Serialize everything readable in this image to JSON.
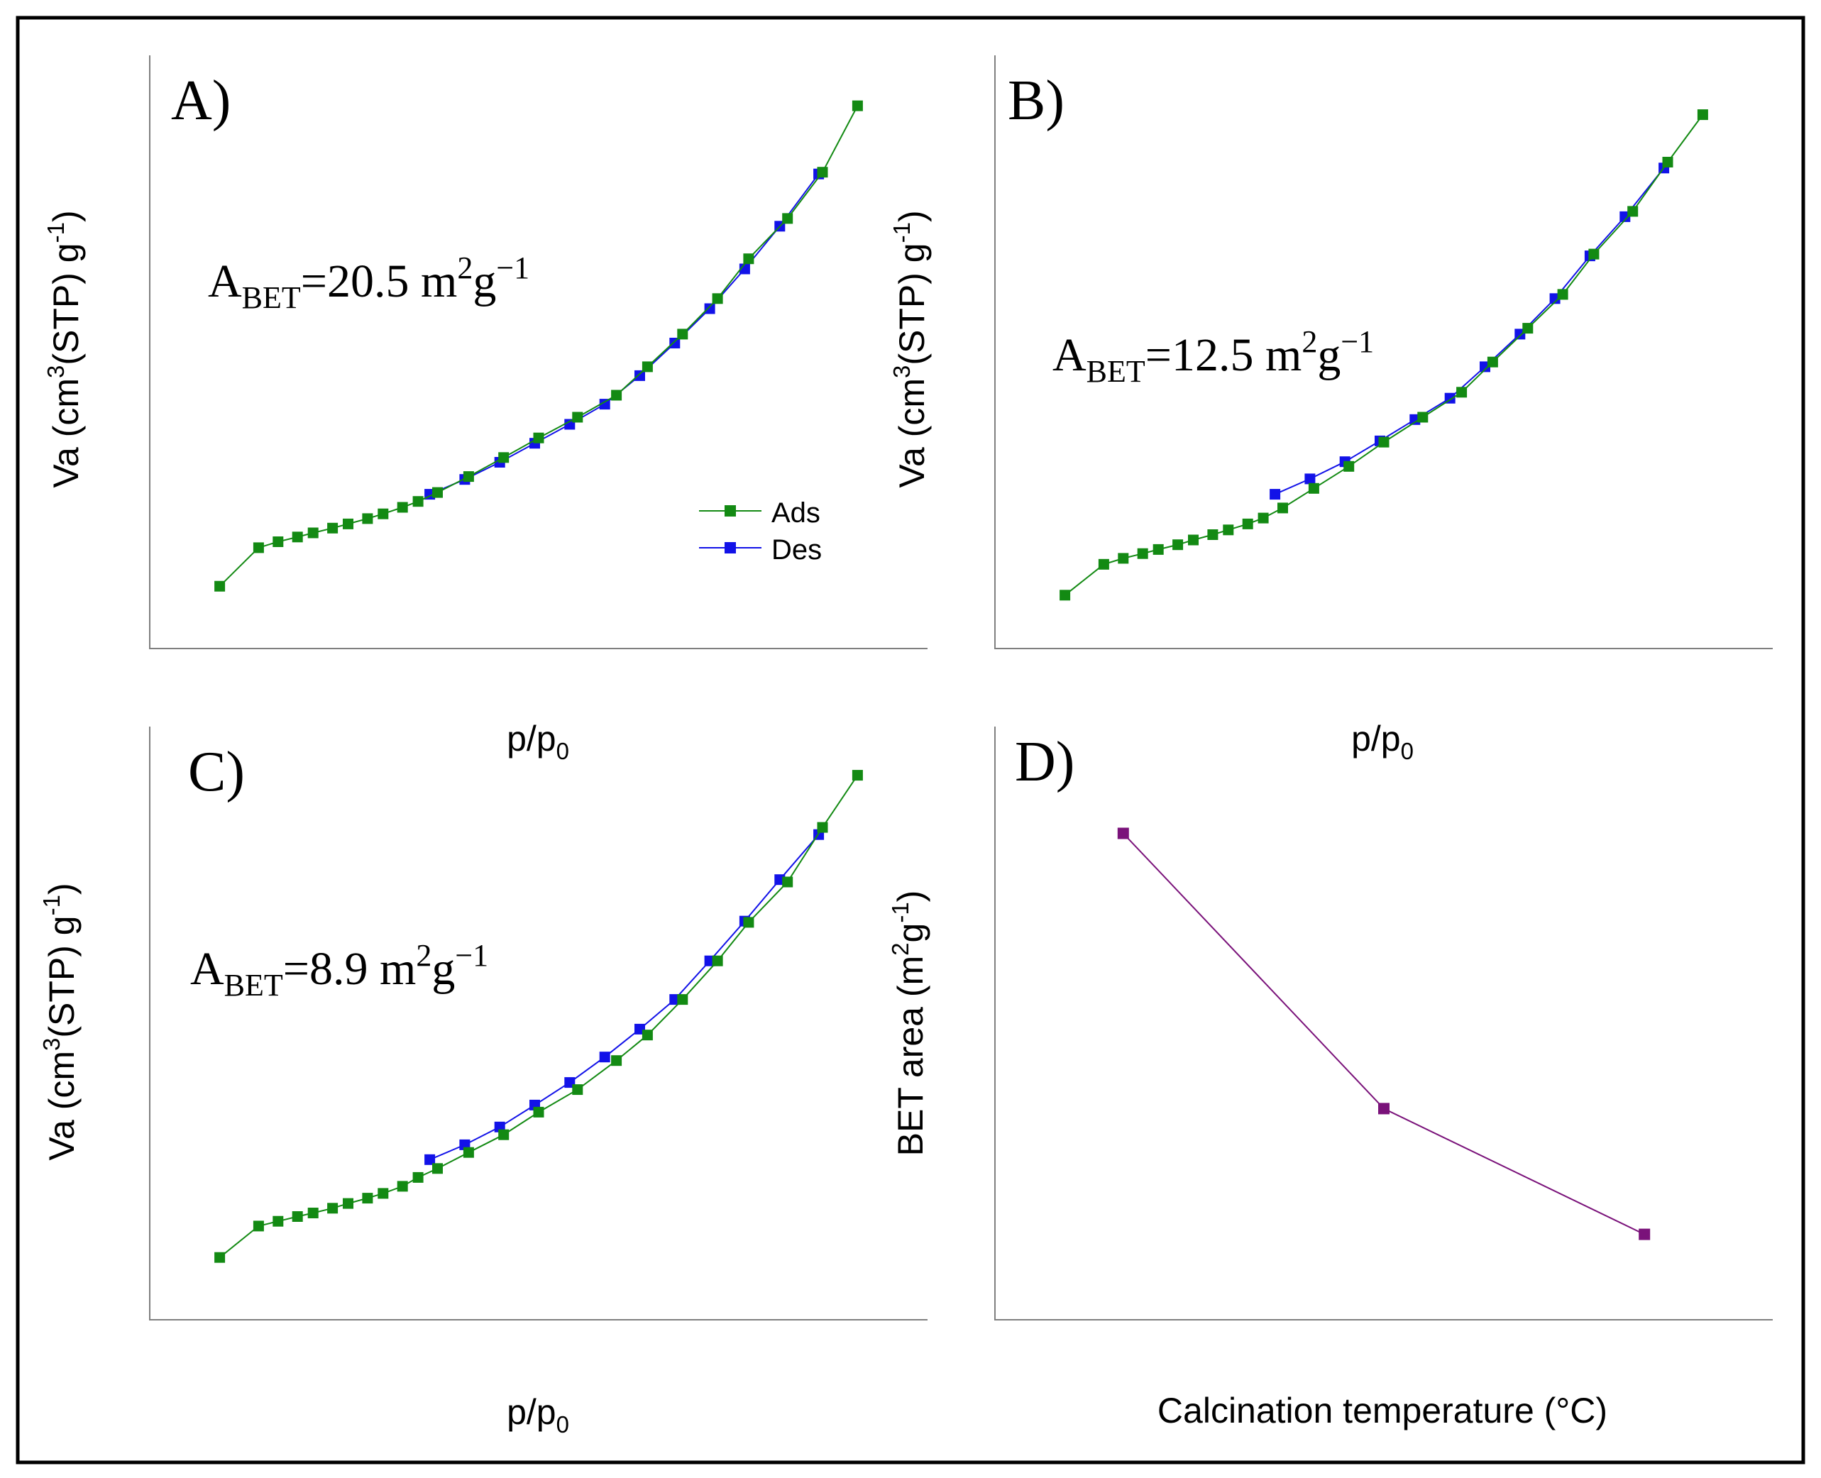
{
  "colors": {
    "ads": "#138a13",
    "des": "#1212e8",
    "bet": "#7a127a",
    "axis": "#7f7f7f",
    "border": "#000000"
  },
  "legend": {
    "ads_label": "Ads",
    "des_label": "Des"
  },
  "chart_data": [
    {
      "panel": "A)",
      "type": "line",
      "xlabel_base": "p/p",
      "xlabel_sub": "0",
      "ylabel_base": "Va (cm",
      "ylabel_sup1": "3",
      "ylabel_mid": "(STP) g",
      "ylabel_sup2": "-1",
      "ylabel_end": ")",
      "annotation": {
        "pre": "A",
        "sub": "BET",
        "value": "=20.5 m",
        "sup1": "2",
        "unit": "g",
        "sup2": "−1"
      },
      "xlim": [
        0,
        1
      ],
      "ylim": [
        0,
        1
      ],
      "legend_position": "center-right",
      "series": [
        {
          "name": "Ads",
          "x": [
            0.09,
            0.14,
            0.165,
            0.19,
            0.21,
            0.235,
            0.255,
            0.28,
            0.3,
            0.325,
            0.345,
            0.37,
            0.41,
            0.455,
            0.5,
            0.55,
            0.6,
            0.64,
            0.685,
            0.73,
            0.77,
            0.82,
            0.865,
            0.91
          ],
          "y": [
            0.105,
            0.17,
            0.18,
            0.188,
            0.195,
            0.203,
            0.21,
            0.219,
            0.227,
            0.238,
            0.248,
            0.263,
            0.29,
            0.322,
            0.355,
            0.39,
            0.427,
            0.475,
            0.53,
            0.59,
            0.657,
            0.725,
            0.803,
            0.915
          ]
        },
        {
          "name": "Des",
          "x": [
            0.36,
            0.405,
            0.45,
            0.495,
            0.54,
            0.585,
            0.63,
            0.675,
            0.72,
            0.765,
            0.81,
            0.86
          ],
          "y": [
            0.26,
            0.285,
            0.314,
            0.346,
            0.378,
            0.412,
            0.46,
            0.515,
            0.573,
            0.64,
            0.712,
            0.8
          ]
        }
      ]
    },
    {
      "panel": "B)",
      "type": "line",
      "xlabel_base": "p/p",
      "xlabel_sub": "0",
      "ylabel_base": "Va (cm",
      "ylabel_sup1": "3",
      "ylabel_mid": "(STP) g",
      "ylabel_sup2": "-1",
      "ylabel_end": ")",
      "annotation": {
        "pre": "A",
        "sub": "BET",
        "value": "=12.5 m",
        "sup1": "2",
        "unit": "g",
        "sup2": "−1"
      },
      "xlim": [
        0,
        1
      ],
      "ylim": [
        0,
        1
      ],
      "series": [
        {
          "name": "Ads",
          "x": [
            0.09,
            0.14,
            0.165,
            0.19,
            0.21,
            0.235,
            0.255,
            0.28,
            0.3,
            0.325,
            0.345,
            0.37,
            0.41,
            0.455,
            0.5,
            0.55,
            0.6,
            0.64,
            0.685,
            0.73,
            0.77,
            0.82,
            0.865,
            0.91
          ],
          "y": [
            0.09,
            0.142,
            0.152,
            0.16,
            0.167,
            0.175,
            0.183,
            0.192,
            0.2,
            0.21,
            0.22,
            0.237,
            0.27,
            0.307,
            0.348,
            0.39,
            0.432,
            0.483,
            0.54,
            0.597,
            0.665,
            0.737,
            0.82,
            0.9
          ]
        },
        {
          "name": "Des",
          "x": [
            0.36,
            0.405,
            0.45,
            0.495,
            0.54,
            0.585,
            0.63,
            0.675,
            0.72,
            0.765,
            0.81,
            0.86
          ],
          "y": [
            0.26,
            0.286,
            0.315,
            0.35,
            0.386,
            0.422,
            0.475,
            0.53,
            0.59,
            0.662,
            0.728,
            0.81
          ]
        }
      ]
    },
    {
      "panel": "C)",
      "type": "line",
      "xlabel_base": "p/p",
      "xlabel_sub": "0",
      "ylabel_base": "Va (cm",
      "ylabel_sup1": "3",
      "ylabel_mid": "(STP) g",
      "ylabel_sup2": "-1",
      "ylabel_end": ")",
      "annotation": {
        "pre": "A",
        "sub": "BET",
        "value": "=8.9 m",
        "sup1": "2",
        "unit": "g",
        "sup2": "−1"
      },
      "xlim": [
        0,
        1
      ],
      "ylim": [
        0,
        1
      ],
      "series": [
        {
          "name": "Ads",
          "x": [
            0.09,
            0.14,
            0.165,
            0.19,
            0.21,
            0.235,
            0.255,
            0.28,
            0.3,
            0.325,
            0.345,
            0.37,
            0.41,
            0.455,
            0.5,
            0.55,
            0.6,
            0.64,
            0.685,
            0.73,
            0.77,
            0.82,
            0.865,
            0.91
          ],
          "y": [
            0.105,
            0.158,
            0.166,
            0.174,
            0.18,
            0.188,
            0.196,
            0.205,
            0.213,
            0.225,
            0.24,
            0.255,
            0.282,
            0.312,
            0.35,
            0.388,
            0.437,
            0.48,
            0.54,
            0.605,
            0.67,
            0.738,
            0.83,
            0.918
          ]
        },
        {
          "name": "Des",
          "x": [
            0.36,
            0.405,
            0.45,
            0.495,
            0.54,
            0.585,
            0.63,
            0.675,
            0.72,
            0.765,
            0.81,
            0.86
          ],
          "y": [
            0.27,
            0.295,
            0.325,
            0.362,
            0.4,
            0.443,
            0.49,
            0.54,
            0.605,
            0.672,
            0.742,
            0.818
          ]
        }
      ]
    },
    {
      "panel": "D)",
      "type": "line",
      "xlabel": "Calcination temperature (°C)",
      "ylabel_base": "BET area (m",
      "ylabel_sup1": "2",
      "ylabel_mid": "g",
      "ylabel_sup2": "-1",
      "ylabel_end": ")",
      "xlim": [
        0,
        1
      ],
      "ylim": [
        0,
        25
      ],
      "series": [
        {
          "name": "BET area",
          "x": [
            0.165,
            0.5,
            0.835
          ],
          "y": [
            20.5,
            8.9,
            3.6
          ]
        }
      ]
    }
  ]
}
